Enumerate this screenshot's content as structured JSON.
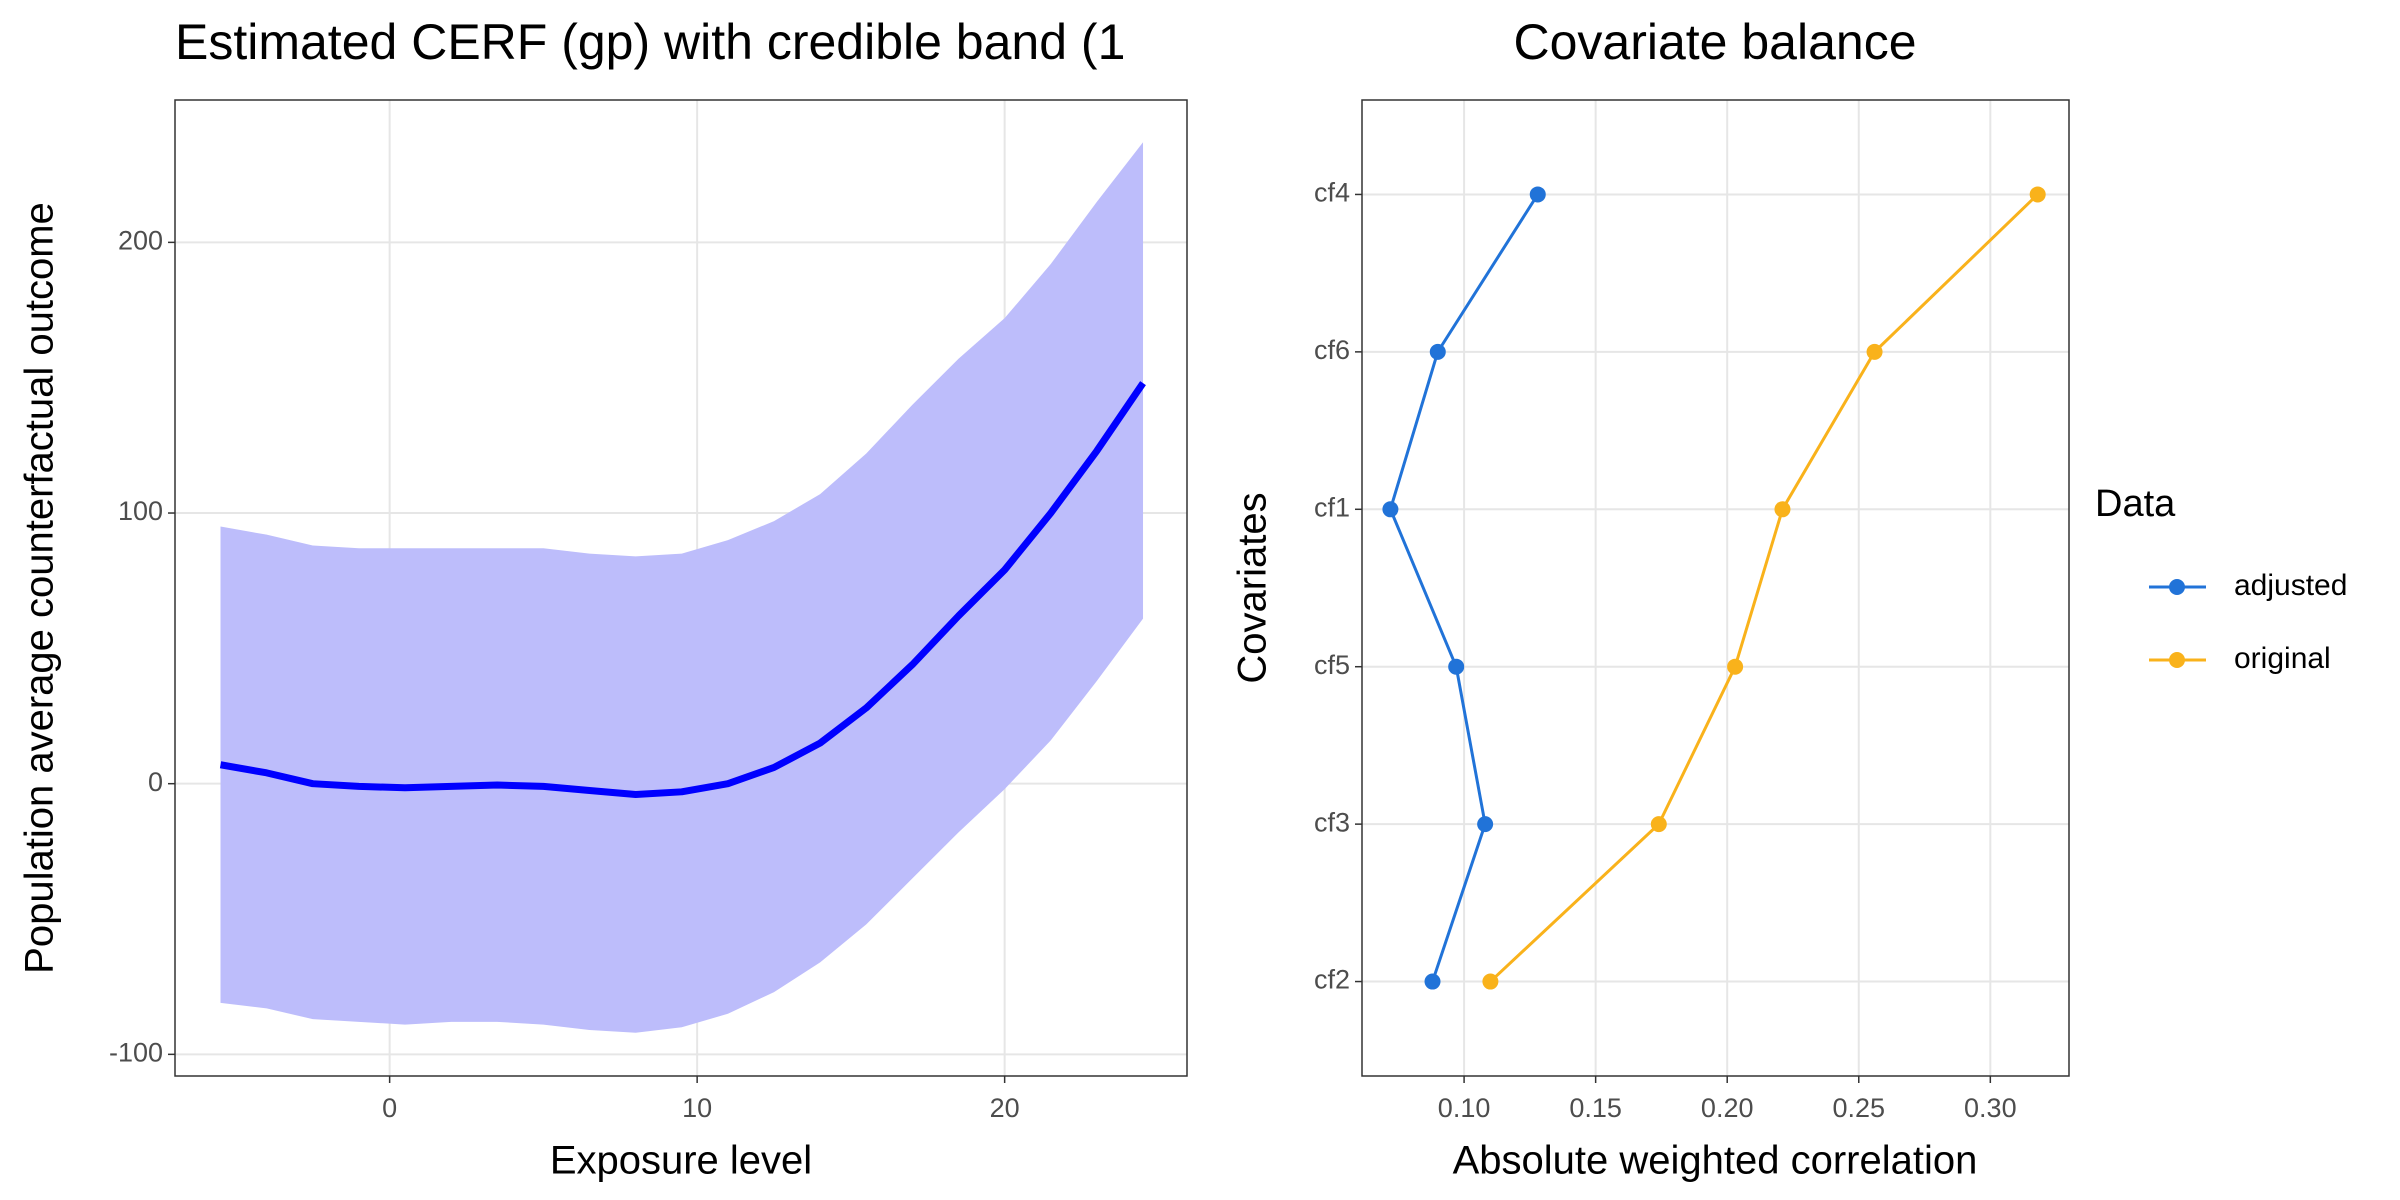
{
  "chart_data": [
    {
      "type": "band-line",
      "title": "Estimated CERF (gp) with credible band (1",
      "x_label": "Exposure level",
      "y_label": "Population average counterfactual outcome",
      "x": [
        -5.5,
        -4,
        -2.5,
        -1,
        0.5,
        2,
        3.5,
        5,
        6.5,
        8,
        9.5,
        11,
        12.5,
        14,
        15.5,
        17,
        18.5,
        20,
        21.5,
        23,
        24.5
      ],
      "values": [
        7,
        4,
        0,
        -1,
        -1.5,
        -1,
        -0.5,
        -1,
        -2.5,
        -4,
        -3,
        0,
        6,
        15,
        28,
        44,
        62,
        79,
        100,
        123,
        148
      ],
      "lower": [
        -81,
        -83,
        -87,
        -88,
        -89,
        -88,
        -88,
        -89,
        -91,
        -92,
        -90,
        -85,
        -77,
        -66,
        -52,
        -35,
        -18,
        -2,
        16,
        38,
        61
      ],
      "upper": [
        95,
        92,
        88,
        87,
        87,
        87,
        87,
        87,
        85,
        84,
        85,
        90,
        97,
        107,
        122,
        140,
        157,
        172,
        192,
        215,
        237
      ],
      "color": "#0000ff",
      "band_color": "#bdbdfb",
      "xlim": [
        -6.98,
        25.93
      ],
      "ylim": [
        -108,
        252.6
      ],
      "xticks": [
        0,
        10,
        20
      ],
      "yticks": [
        -100,
        0,
        100,
        200
      ],
      "grid": true
    },
    {
      "type": "line",
      "orientation": "horizontal",
      "title": "Covariate balance",
      "x_label": "Absolute weighted correlation",
      "y_label": "Covariates",
      "legend_title": "Data",
      "categories": [
        "cf2",
        "cf3",
        "cf5",
        "cf1",
        "cf6",
        "cf4"
      ],
      "series": [
        {
          "name": "adjusted",
          "color": "#2173d8",
          "values": [
            0.088,
            0.108,
            0.097,
            0.072,
            0.09,
            0.128
          ]
        },
        {
          "name": "original",
          "color": "#f9b21b",
          "values": [
            0.11,
            0.174,
            0.203,
            0.221,
            0.256,
            0.318
          ]
        }
      ],
      "xlim": [
        0.0612,
        0.3299
      ],
      "xticks": [
        {
          "value": 0.1,
          "label": "0.10"
        },
        {
          "value": 0.15,
          "label": "0.15"
        },
        {
          "value": 0.2,
          "label": "0.20"
        },
        {
          "value": 0.25,
          "label": "0.25"
        },
        {
          "value": 0.3,
          "label": "0.30"
        }
      ],
      "grid": true
    }
  ]
}
